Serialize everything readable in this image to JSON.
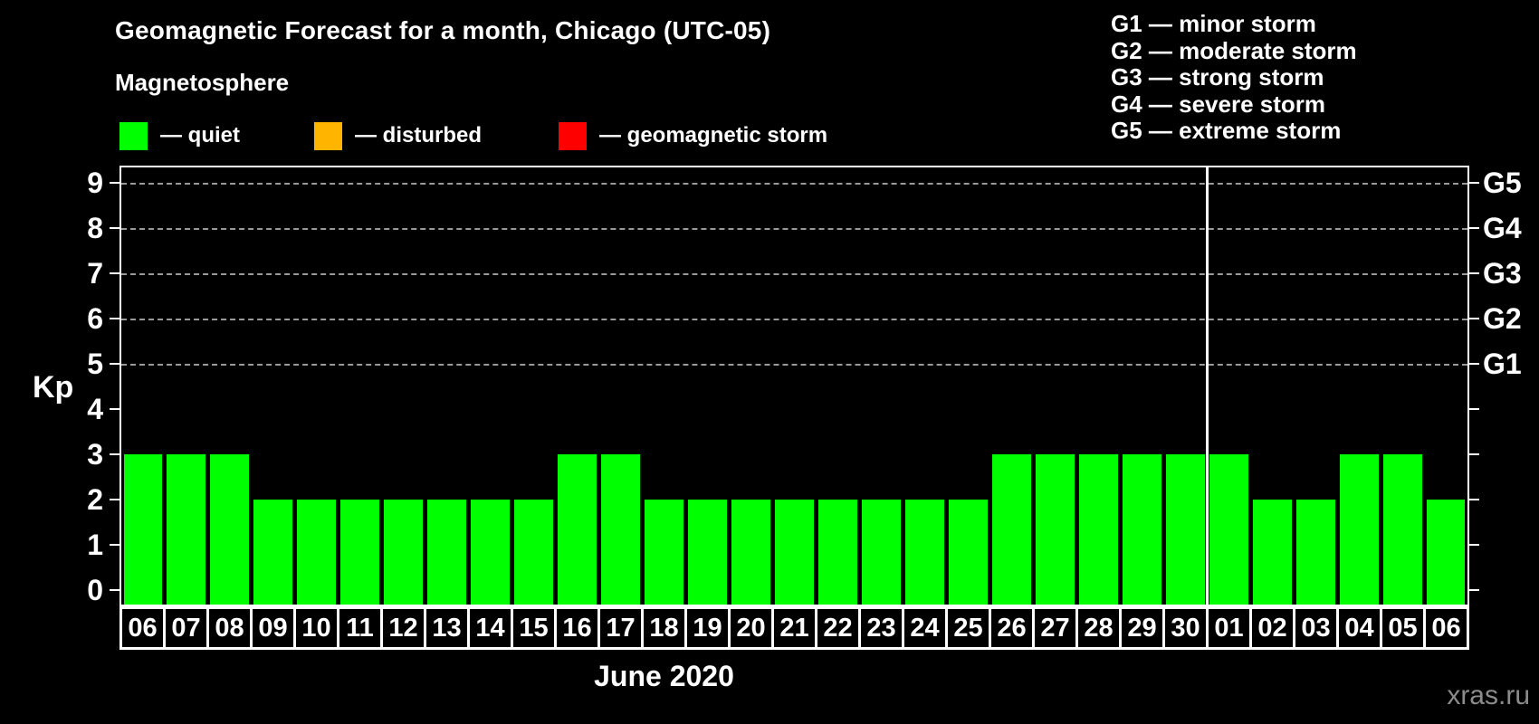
{
  "title": "Geomagnetic Forecast for a month, Chicago (UTC-05)",
  "subtitle": "Magnetosphere",
  "legend": {
    "items": [
      {
        "label": "— quiet",
        "color": "#00ff00"
      },
      {
        "label": "— disturbed",
        "color": "#ffb400"
      },
      {
        "label": "— geomagnetic storm",
        "color": "#ff0000"
      }
    ]
  },
  "storm_legend": [
    "G1 — minor storm",
    "G2 — moderate storm",
    "G3 — strong storm",
    "G4 — severe storm",
    "G5 — extreme storm"
  ],
  "watermark": "xras.ru",
  "colors": {
    "background": "#000000",
    "axis": "#ffffff",
    "grid_dashed": "#9a9a9a",
    "watermark": "#8c8c8c"
  },
  "chart_data": {
    "type": "bar",
    "title": "Geomagnetic Forecast for a month, Chicago (UTC-05)",
    "xlabel": "June 2020",
    "ylabel": "Kp",
    "ylim": [
      0,
      9
    ],
    "grid": "horizontal dashed lines at Kp 5-9 only",
    "legend_position": "top-left",
    "left_ticks": [
      "0",
      "1",
      "2",
      "3",
      "4",
      "5",
      "6",
      "7",
      "8",
      "9"
    ],
    "right_axis": [
      {
        "label": "G5",
        "kp": 9
      },
      {
        "label": "G4",
        "kp": 8
      },
      {
        "label": "G3",
        "kp": 7
      },
      {
        "label": "G2",
        "kp": 6
      },
      {
        "label": "G1",
        "kp": 5
      }
    ],
    "grid_kp_levels": [
      5,
      6,
      7,
      8,
      9
    ],
    "categories": [
      "06",
      "07",
      "08",
      "09",
      "10",
      "11",
      "12",
      "13",
      "14",
      "15",
      "16",
      "17",
      "18",
      "19",
      "20",
      "21",
      "22",
      "23",
      "24",
      "25",
      "26",
      "27",
      "28",
      "29",
      "30",
      "01",
      "02",
      "03",
      "04",
      "05",
      "06"
    ],
    "values": [
      3,
      3,
      3,
      2,
      2,
      2,
      2,
      2,
      2,
      2,
      3,
      3,
      2,
      2,
      2,
      2,
      2,
      2,
      2,
      2,
      3,
      3,
      3,
      3,
      3,
      3,
      2,
      2,
      3,
      3,
      2
    ],
    "bar_color": "#00ff00",
    "month_separator_after_index": 24
  }
}
